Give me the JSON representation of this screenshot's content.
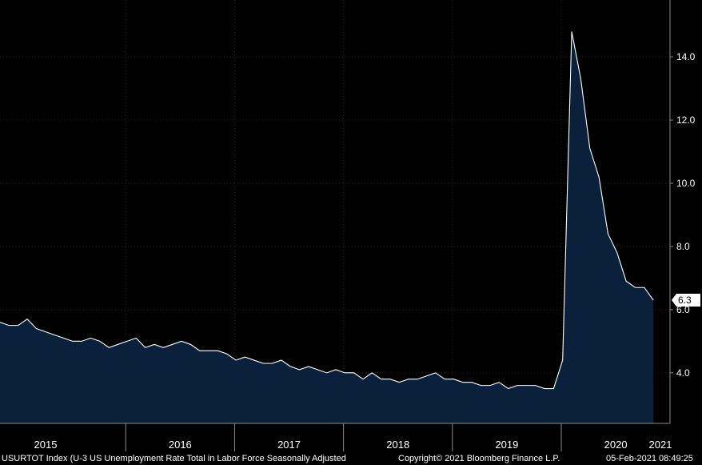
{
  "chart_data": {
    "type": "area",
    "ticker": "USURTOT Index",
    "series_description": "(U-3 US Unemployment Rate Total in Labor Force Seasonally Adjusted",
    "x_labels": [
      "2015",
      "2016",
      "2017",
      "2018",
      "2019",
      "2020",
      "2021"
    ],
    "y_ticks": [
      "4.0",
      "6.0",
      "8.0",
      "10.0",
      "12.0",
      "14.0"
    ],
    "last_value_label": "6.3",
    "ylim": [
      2.4,
      15.8
    ],
    "x_start": "2014-11",
    "series": [
      {
        "values": [
          5.6,
          5.5,
          5.5,
          5.7,
          5.4,
          5.3,
          5.2,
          5.1,
          5.0,
          5.0,
          5.1,
          5.0,
          4.8,
          4.9,
          5.0,
          5.1,
          4.8,
          4.9,
          4.8,
          4.9,
          5.0,
          4.9,
          4.7,
          4.7,
          4.7,
          4.6,
          4.4,
          4.5,
          4.4,
          4.3,
          4.3,
          4.4,
          4.2,
          4.1,
          4.2,
          4.1,
          4.0,
          4.1,
          4.0,
          4.0,
          3.8,
          4.0,
          3.8,
          3.8,
          3.7,
          3.8,
          3.8,
          3.9,
          4.0,
          3.8,
          3.8,
          3.7,
          3.7,
          3.6,
          3.6,
          3.7,
          3.5,
          3.6,
          3.6,
          3.6,
          3.5,
          3.5,
          4.4,
          14.8,
          13.3,
          11.1,
          10.2,
          8.4,
          7.8,
          6.9,
          6.7,
          6.7,
          6.3
        ]
      }
    ],
    "colors": {
      "background": "#000000",
      "area_fill": "#0b213b",
      "line": "#ffffff",
      "grid": "#2a2a2a",
      "axis": "#8a8a8a"
    },
    "grid": true
  },
  "footer": {
    "title": "USURTOT Index (U-3 US Unemployment Rate Total in Labor Force Seasonally Adjusted",
    "copyright": "Copyright© 2021 Bloomberg Finance L.P.",
    "timestamp": "05-Feb-2021 08:49:25"
  }
}
